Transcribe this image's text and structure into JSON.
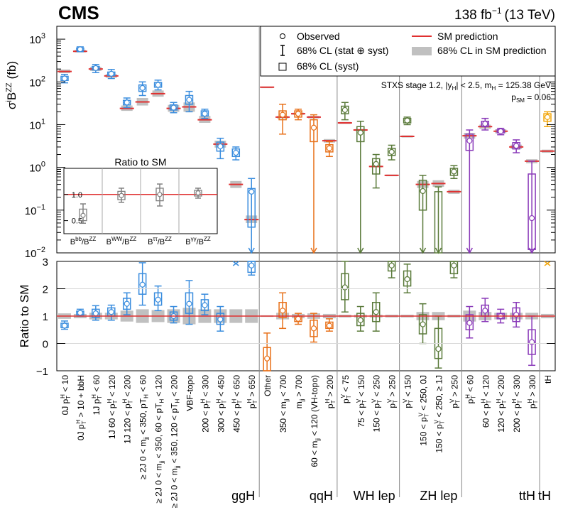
{
  "header": {
    "experiment": "CMS",
    "luminosity": "138 fb",
    "lumi_sup": "−1",
    "energy": "(13 TeV)"
  },
  "chart_data": {
    "type": "scatter",
    "top_panel": {
      "ylabel_main": "σ",
      "ylabel_sup": "i",
      "ylabel_b": "B",
      "ylabel_b_sup": "ZZ",
      "ylabel_unit": "(fb)",
      "y_scale": "log",
      "ylim": [
        0.01,
        2000
      ],
      "ticks": [
        {
          "v": 0.01,
          "m": "10",
          "e": "−2"
        },
        {
          "v": 0.1,
          "m": "10",
          "e": "−1"
        },
        {
          "v": 1,
          "m": "10",
          "e": "0"
        },
        {
          "v": 10,
          "m": "10",
          "e": "1"
        },
        {
          "v": 100,
          "m": "10",
          "e": "2"
        },
        {
          "v": 1000,
          "m": "10",
          "e": "3"
        }
      ],
      "tick_labels": [
        "10",
        "10",
        "10",
        "10",
        "10",
        "10"
      ],
      "annotation_line1": "STXS stage 1.2, |y",
      "annotation_line1_sub": "H",
      "annotation_line1_rest": "| < 2.5, m",
      "annotation_line1_sub2": "H",
      "annotation_line1_end": " = 125.38 GeV",
      "annotation_line2": "p",
      "annotation_line2_sub": "SM",
      "annotation_line2_end": " = 0.06",
      "legend": {
        "observed": "Observed",
        "cl68_total": "68% CL (stat ⊕ syst)",
        "cl68_syst": "68% CL (syst)",
        "sm_prediction": "SM prediction",
        "sm_band": "68% CL in SM prediction"
      },
      "points": [
        {
          "cat": "0J pTH<10",
          "value": 120,
          "stat_lo": 95,
          "stat_hi": 150,
          "syst_lo": 108,
          "syst_hi": 135,
          "sm": 175,
          "sm_lo": 160,
          "sm_hi": 195
        },
        {
          "cat": "0J pTH>10 + bbH",
          "value": 580,
          "stat_lo": 510,
          "stat_hi": 660,
          "syst_lo": 545,
          "syst_hi": 620,
          "sm": 520,
          "sm_lo": 490,
          "sm_hi": 560
        },
        {
          "cat": "1J pTH<60",
          "value": 210,
          "stat_lo": 165,
          "stat_hi": 255,
          "syst_lo": 190,
          "syst_hi": 230,
          "sm": 200,
          "sm_lo": 180,
          "sm_hi": 225
        },
        {
          "cat": "1J 60<pTH<120",
          "value": 155,
          "stat_lo": 120,
          "stat_hi": 195,
          "syst_lo": 140,
          "syst_hi": 170,
          "sm": 138,
          "sm_lo": 125,
          "sm_hi": 152
        },
        {
          "cat": "1J 120<pTH<200",
          "value": 33,
          "stat_lo": 25,
          "stat_hi": 42,
          "syst_lo": 29,
          "syst_hi": 37,
          "sm": 24,
          "sm_lo": 21,
          "sm_hi": 28
        },
        {
          "cat": "≥2J 0<mjj<350, pTH<60",
          "value": 72,
          "stat_lo": 48,
          "stat_hi": 100,
          "syst_lo": 60,
          "syst_hi": 85,
          "sm": 34,
          "sm_lo": 28,
          "sm_hi": 42
        },
        {
          "cat": "≥2J 0<mjj<350, 60<pTH<120",
          "value": 85,
          "stat_lo": 65,
          "stat_hi": 110,
          "syst_lo": 75,
          "syst_hi": 97,
          "sm": 53,
          "sm_lo": 45,
          "sm_hi": 63
        },
        {
          "cat": "≥2J 0<mjj<350, 120<pTH<200",
          "value": 25,
          "stat_lo": 19,
          "stat_hi": 33,
          "syst_lo": 22,
          "syst_hi": 29,
          "sm": 24,
          "sm_lo": 20,
          "sm_hi": 29
        },
        {
          "cat": "VBF-topo",
          "value": 38,
          "stat_lo": 20,
          "stat_hi": 60,
          "syst_lo": 30,
          "syst_hi": 48,
          "sm": 26,
          "sm_lo": 20,
          "sm_hi": 33
        },
        {
          "cat": "200<pTH<300",
          "value": 18,
          "stat_lo": 14,
          "stat_hi": 23,
          "syst_lo": 16,
          "syst_hi": 21,
          "sm": 13,
          "sm_lo": 11,
          "sm_hi": 16
        },
        {
          "cat": "300<pTH<450",
          "value": 3.1,
          "stat_lo": 1.6,
          "stat_hi": 4.8,
          "syst_lo": 2.4,
          "syst_hi": 3.9,
          "sm": 3.5,
          "sm_lo": 2.9,
          "sm_hi": 4.2
        },
        {
          "cat": "450<pTH<650",
          "value": 2.2,
          "stat_lo": 1.5,
          "stat_hi": 3.0,
          "syst_lo": 1.8,
          "syst_hi": 2.7,
          "sm": 0.4,
          "sm_lo": 0.33,
          "sm_hi": 0.48
        },
        {
          "cat": "pTH>650",
          "value": 0.27,
          "stat_lo": 0.01,
          "stat_hi": 0.55,
          "syst_lo": 0.04,
          "syst_hi": 0.32,
          "sm": 0.06,
          "sm_lo": 0.05,
          "sm_hi": 0.075
        },
        {
          "cat": "Other",
          "value": null,
          "stat_lo": null,
          "stat_hi": null,
          "syst_lo": null,
          "syst_hi": null,
          "sm": 75,
          "sm_lo": 73,
          "sm_hi": 77
        },
        {
          "cat": "350<mjj<700",
          "value": 17,
          "stat_lo": 6,
          "stat_hi": 30,
          "syst_lo": 13,
          "syst_hi": 21,
          "sm": 15,
          "sm_lo": 14,
          "sm_hi": 16
        },
        {
          "cat": "mjj>700",
          "value": 18,
          "stat_lo": 13,
          "stat_hi": 23,
          "syst_lo": 15,
          "syst_hi": 21,
          "sm": 18,
          "sm_lo": 17,
          "sm_hi": 19
        },
        {
          "cat": "60<mjj<120 (VH-topo)",
          "value": 8.5,
          "stat_lo": 0.01,
          "stat_hi": 17,
          "syst_lo": 4,
          "syst_hi": 13,
          "sm": 15,
          "sm_lo": 14,
          "sm_hi": 16
        },
        {
          "cat": "pTH>200",
          "value": 2.8,
          "stat_lo": 1.8,
          "stat_hi": 4.0,
          "syst_lo": 2.3,
          "syst_hi": 3.4,
          "sm": 4.2,
          "sm_lo": 3.8,
          "sm_hi": 4.6
        },
        {
          "cat": "pTV<75",
          "value": 22,
          "stat_lo": 13,
          "stat_hi": 33,
          "syst_lo": 18,
          "syst_hi": 27,
          "sm": 11,
          "sm_lo": 10.4,
          "sm_hi": 11.6
        },
        {
          "cat": "75<pTV<150",
          "value": 6.5,
          "stat_lo": 0.01,
          "stat_hi": 12,
          "syst_lo": 4,
          "syst_hi": 9,
          "sm": 7.5,
          "sm_lo": 7.1,
          "sm_hi": 7.9
        },
        {
          "cat": "150<pTV<250",
          "value": 1.2,
          "stat_lo": 0.33,
          "stat_hi": 2.0,
          "syst_lo": 0.7,
          "syst_hi": 1.6,
          "sm": 1.05,
          "sm_lo": 1.0,
          "sm_hi": 1.1
        },
        {
          "cat": "pTV>250",
          "value": 2.3,
          "stat_lo": 1.5,
          "stat_hi": 3.3,
          "syst_lo": 1.9,
          "syst_hi": 2.8,
          "sm": 0.65,
          "sm_lo": 0.62,
          "sm_hi": 0.68
        },
        {
          "cat": "pTV<150",
          "value": 12.5,
          "stat_lo": 10,
          "stat_hi": 15,
          "syst_lo": 11,
          "syst_hi": 14,
          "sm": 5.3,
          "sm_lo": 5.0,
          "sm_hi": 5.6
        },
        {
          "cat": "150<pTV<250, 0J",
          "value": 0.28,
          "stat_lo": 0.01,
          "stat_hi": 0.65,
          "syst_lo": 0.1,
          "syst_hi": 0.5,
          "sm": 0.4,
          "sm_lo": 0.33,
          "sm_hi": 0.48
        },
        {
          "cat": "150<pTV<250, ≥1J",
          "value": null,
          "stat_lo": 0.01,
          "stat_hi": 0.35,
          "syst_lo": 0.01,
          "syst_hi": 0.27,
          "sm": 0.42,
          "sm_lo": 0.35,
          "sm_hi": 0.5
        },
        {
          "cat": "pTV>250",
          "value": 0.8,
          "stat_lo": 0.55,
          "stat_hi": 1.1,
          "syst_lo": 0.65,
          "syst_hi": 0.95,
          "sm": 0.27,
          "sm_lo": 0.24,
          "sm_hi": 0.3
        },
        {
          "cat": "pTH<60",
          "value": 4.2,
          "stat_lo": 0.01,
          "stat_hi": 7.5,
          "syst_lo": 2.5,
          "syst_hi": 6.0,
          "sm": 5.5,
          "sm_lo": 4.7,
          "sm_hi": 6.4
        },
        {
          "cat": "60<pTH<120",
          "value": 10.5,
          "stat_lo": 7.5,
          "stat_hi": 14,
          "syst_lo": 9,
          "syst_hi": 12,
          "sm": 9,
          "sm_lo": 8,
          "sm_hi": 10
        },
        {
          "cat": "120<pTH<200",
          "value": 7.0,
          "stat_lo": 5.8,
          "stat_hi": 8.2,
          "syst_lo": 6.4,
          "syst_hi": 7.6,
          "sm": 7,
          "sm_lo": 6.3,
          "sm_hi": 7.8
        },
        {
          "cat": "200<pTH<300",
          "value": 3.2,
          "stat_lo": 2.2,
          "stat_hi": 4.4,
          "syst_lo": 2.7,
          "syst_hi": 3.8,
          "sm": 3,
          "sm_lo": 2.7,
          "sm_hi": 3.4
        },
        {
          "cat": "pTH>300",
          "value": 0.065,
          "stat_lo": 0.01,
          "stat_hi": 1.4,
          "syst_lo": 0.012,
          "syst_hi": 0.7,
          "sm": 1.4,
          "sm_lo": 1.25,
          "sm_hi": 1.55
        },
        {
          "cat": "tH",
          "value": 15,
          "stat_lo": 9,
          "stat_hi": 20,
          "syst_lo": 12,
          "syst_hi": 18,
          "sm": 2.4,
          "sm_lo": 2.2,
          "sm_hi": 2.6
        }
      ]
    },
    "ratio_panel": {
      "ylabel": "Ratio to SM",
      "ylim": [
        -1,
        3
      ],
      "tick_labels": [
        "−1",
        "0",
        "1",
        "2",
        "3"
      ],
      "points": [
        {
          "value": 0.65,
          "stat_lo": 0.52,
          "stat_hi": 0.82,
          "syst_lo": 0.58,
          "syst_hi": 0.74,
          "band": 0.1
        },
        {
          "value": 1.12,
          "stat_lo": 1.0,
          "stat_hi": 1.25,
          "syst_lo": 1.05,
          "syst_hi": 1.18,
          "band": 0.08
        },
        {
          "value": 1.1,
          "stat_lo": 0.85,
          "stat_hi": 1.38,
          "syst_lo": 0.95,
          "syst_hi": 1.25,
          "band": 0.12
        },
        {
          "value": 1.15,
          "stat_lo": 0.85,
          "stat_hi": 1.4,
          "syst_lo": 1.0,
          "syst_hi": 1.3,
          "band": 0.12
        },
        {
          "value": 1.45,
          "stat_lo": 1.05,
          "stat_hi": 1.85,
          "syst_lo": 1.25,
          "syst_hi": 1.65,
          "band": 0.2
        },
        {
          "value": 2.15,
          "stat_lo": 1.4,
          "stat_hi": 2.95,
          "syst_lo": 1.8,
          "syst_hi": 2.55,
          "band": 0.25
        },
        {
          "value": 1.6,
          "stat_lo": 1.2,
          "stat_hi": 2.1,
          "syst_lo": 1.4,
          "syst_hi": 1.85,
          "band": 0.22
        },
        {
          "value": 1.0,
          "stat_lo": 0.75,
          "stat_hi": 1.35,
          "syst_lo": 0.85,
          "syst_hi": 1.15,
          "band": 0.25
        },
        {
          "value": 1.45,
          "stat_lo": 0.7,
          "stat_hi": 2.3,
          "syst_lo": 1.1,
          "syst_hi": 1.85,
          "band": 0.3
        },
        {
          "value": 1.4,
          "stat_lo": 1.05,
          "stat_hi": 1.8,
          "syst_lo": 1.2,
          "syst_hi": 1.6,
          "band": 0.25
        },
        {
          "value": 0.88,
          "stat_lo": 0.45,
          "stat_hi": 1.35,
          "syst_lo": 0.7,
          "syst_hi": 1.1,
          "band": 0.25
        },
        {
          "value": null,
          "off_scale": true,
          "stat_lo": null,
          "stat_hi": null,
          "syst_lo": null,
          "syst_hi": null,
          "band": 0.25
        },
        {
          "value": 2.85,
          "stat_lo": 2.5,
          "stat_hi": 3.0,
          "syst_lo": 2.6,
          "syst_hi": 3.0,
          "band": 0.25
        },
        {
          "value": -0.55,
          "stat_lo": -1.0,
          "stat_hi": 0.38,
          "syst_lo": -1.0,
          "syst_hi": -0.15,
          "band": 0.03
        },
        {
          "value": 1.2,
          "stat_lo": 0.55,
          "stat_hi": 1.85,
          "syst_lo": 0.95,
          "syst_hi": 1.5,
          "band": 0.12
        },
        {
          "value": 0.9,
          "stat_lo": 0.7,
          "stat_hi": 1.1,
          "syst_lo": 0.8,
          "syst_hi": 1.0,
          "band": 0.08
        },
        {
          "value": 0.55,
          "stat_lo": 0.05,
          "stat_hi": 1.1,
          "syst_lo": 0.25,
          "syst_hi": 0.85,
          "band": 0.1
        },
        {
          "value": 0.65,
          "stat_lo": 0.45,
          "stat_hi": 0.9,
          "syst_lo": 0.55,
          "syst_hi": 0.78,
          "band": 0.08
        },
        {
          "value": 2.05,
          "stat_lo": 1.15,
          "stat_hi": 3.0,
          "syst_lo": 1.6,
          "syst_hi": 2.55,
          "band": 0.05
        },
        {
          "value": 0.85,
          "stat_lo": 0.45,
          "stat_hi": 1.35,
          "syst_lo": 0.65,
          "syst_hi": 1.1,
          "band": 0.05
        },
        {
          "value": 1.15,
          "stat_lo": 0.45,
          "stat_hi": 1.85,
          "syst_lo": 0.8,
          "syst_hi": 1.5,
          "band": 0.05
        },
        {
          "value": 2.85,
          "stat_lo": 2.4,
          "stat_hi": 3.0,
          "syst_lo": 2.65,
          "syst_hi": 3.0,
          "band": 0.05
        },
        {
          "value": 2.35,
          "stat_lo": 1.85,
          "stat_hi": 2.9,
          "syst_lo": 2.1,
          "syst_hi": 2.65,
          "band": 0.05
        },
        {
          "value": 0.7,
          "stat_lo": 0.0,
          "stat_hi": 1.45,
          "syst_lo": 0.35,
          "syst_hi": 1.05,
          "band": 0.15
        },
        {
          "value": -0.2,
          "stat_lo": -0.9,
          "stat_hi": 1.0,
          "syst_lo": -0.55,
          "syst_hi": 0.55,
          "band": 0.15
        },
        {
          "value": 2.85,
          "stat_lo": 2.4,
          "stat_hi": 3.0,
          "syst_lo": 2.55,
          "syst_hi": 3.0,
          "band": 0.05
        },
        {
          "value": 0.75,
          "stat_lo": 0.2,
          "stat_hi": 1.35,
          "syst_lo": 0.5,
          "syst_hi": 1.05,
          "band": 0.2
        },
        {
          "value": 1.2,
          "stat_lo": 0.8,
          "stat_hi": 1.65,
          "syst_lo": 1.0,
          "syst_hi": 1.4,
          "band": 0.15
        },
        {
          "value": 1.0,
          "stat_lo": 0.75,
          "stat_hi": 1.25,
          "syst_lo": 0.9,
          "syst_hi": 1.1,
          "band": 0.12
        },
        {
          "value": 1.05,
          "stat_lo": 0.6,
          "stat_hi": 1.5,
          "syst_lo": 0.8,
          "syst_hi": 1.3,
          "band": 0.12
        },
        {
          "value": 0.05,
          "stat_lo": -0.8,
          "stat_hi": 1.0,
          "syst_lo": -0.4,
          "syst_hi": 0.5,
          "band": 0.12
        },
        {
          "value": null,
          "off_scale": true,
          "stat_lo": null,
          "stat_hi": null,
          "syst_lo": null,
          "syst_hi": null,
          "band": 0.08
        }
      ]
    },
    "inset": {
      "title": "Ratio to SM",
      "ylim": [
        0.25,
        1.5
      ],
      "tick_labels": [
        "0.5",
        "1.0"
      ],
      "labels": [
        {
          "a": "B",
          "as": "bb",
          "b": "B",
          "bs": "ZZ"
        },
        {
          "a": "B",
          "as": "WW",
          "b": "B",
          "bs": "ZZ"
        },
        {
          "a": "B",
          "as": "ττ",
          "b": "B",
          "bs": "ZZ"
        },
        {
          "a": "B",
          "as": "γγ",
          "b": "B",
          "bs": "ZZ"
        }
      ],
      "points": [
        {
          "value": 0.6,
          "stat_lo": 0.45,
          "stat_hi": 0.82,
          "syst_lo": 0.5,
          "syst_hi": 0.72
        },
        {
          "value": 0.98,
          "stat_lo": 0.85,
          "stat_hi": 1.12,
          "syst_lo": 0.9,
          "syst_hi": 1.06
        },
        {
          "value": 1.0,
          "stat_lo": 0.78,
          "stat_hi": 1.2,
          "syst_lo": 0.88,
          "syst_hi": 1.12
        },
        {
          "value": 1.03,
          "stat_lo": 0.93,
          "stat_hi": 1.12,
          "syst_lo": 0.97,
          "syst_hi": 1.08
        }
      ]
    },
    "categories": [
      [
        "0J p",
        "T",
        "H",
        " < 10"
      ],
      [
        "0J p",
        "T",
        "H",
        " > 10 + bbH"
      ],
      [
        "1J p",
        "T",
        "H",
        " < 60"
      ],
      [
        "1J 60 < p",
        "T",
        "H",
        " < 120"
      ],
      [
        "1J 120 < p",
        "T",
        "H",
        " < 200"
      ],
      [
        "≥ 2J 0 < m",
        "jj",
        " < 350, p",
        "T",
        "H",
        " < 60"
      ],
      [
        "≥ 2J 0 < m",
        "jj",
        " < 350, 60 < p",
        "T",
        "H",
        " < 120"
      ],
      [
        "≥ 2J 0 < m",
        "jj",
        " < 350, 120 < p",
        "T",
        "H",
        " < 200"
      ],
      [
        "VBF-topo"
      ],
      [
        "200 < p",
        "T",
        "H",
        " < 300"
      ],
      [
        "300 < p",
        "T",
        "H",
        " < 450"
      ],
      [
        "450 < p",
        "T",
        "H",
        " < 650"
      ],
      [
        "p",
        "T",
        "H",
        " > 650"
      ],
      [
        "Other"
      ],
      [
        "350 < m",
        "jj",
        " < 700"
      ],
      [
        "m",
        "jj",
        " > 700"
      ],
      [
        "60 < m",
        "jj",
        " < 120 (VH-topo)"
      ],
      [
        "p",
        "T",
        "H",
        " > 200"
      ],
      [
        "p",
        "T",
        "V",
        " < 75"
      ],
      [
        "75 < p",
        "T",
        "V",
        " < 150"
      ],
      [
        "150 < p",
        "T",
        "V",
        " < 250"
      ],
      [
        "p",
        "T",
        "V",
        " > 250"
      ],
      [
        "p",
        "T",
        "V",
        " < 150"
      ],
      [
        "150 < p",
        "T",
        "V",
        " < 250, 0J"
      ],
      [
        "150 < p",
        "T",
        "V",
        " < 250, ≥ 1J"
      ],
      [
        "p",
        "T",
        "V",
        " > 250"
      ],
      [
        "p",
        "T",
        "H",
        " < 60"
      ],
      [
        "60 < p",
        "T",
        "H",
        " < 120"
      ],
      [
        "120 < p",
        "T",
        "H",
        " < 200"
      ],
      [
        "200 < p",
        "T",
        "H",
        " < 300"
      ],
      [
        "p",
        "T",
        "H",
        " > 300"
      ],
      [
        "tH"
      ]
    ],
    "groups": [
      {
        "label": "ggH",
        "start": 0,
        "end": 12,
        "color": "#3a8dde"
      },
      {
        "label": "qqH",
        "start": 13,
        "end": 17,
        "color": "#e8711a"
      },
      {
        "label": "WH lep",
        "start": 18,
        "end": 21,
        "color": "#5a7a3a"
      },
      {
        "label": "ZH lep",
        "start": 22,
        "end": 25,
        "color": "#5a7a3a"
      },
      {
        "label": "ttH",
        "start": 26,
        "end": 30,
        "color": "#8a3ab9"
      },
      {
        "label": "tH",
        "start": 31,
        "end": 31,
        "color": "#f2a60c"
      }
    ],
    "colors": {
      "sm_line": "#e03030",
      "sm_band": "#c0c0c0",
      "inset_marker": "#808080"
    }
  }
}
